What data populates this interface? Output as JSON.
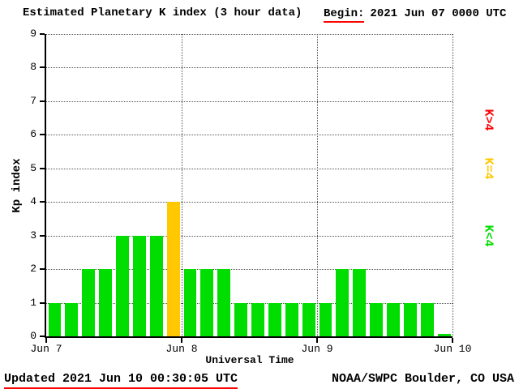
{
  "title": "Estimated Planetary K index (3 hour data)",
  "header": {
    "begin_label": "Begin:",
    "begin_value": "2021 Jun 07 0000 UTC"
  },
  "footer": {
    "updated": "Updated 2021 Jun 10 00:30:05 UTC",
    "source": "NOAA/SWPC Boulder, CO USA"
  },
  "chart_data": {
    "type": "bar",
    "title": "Estimated Planetary K index (3 hour data)",
    "begin": "2021 Jun 07 0000 UTC",
    "xlabel": "Universal Time",
    "ylabel": "Kp index",
    "ylim": [
      0,
      9
    ],
    "yticks": [
      0,
      1,
      2,
      3,
      4,
      5,
      6,
      7,
      8,
      9
    ],
    "x_day_labels": [
      "Jun 7",
      "Jun 8",
      "Jun 9",
      "Jun 10"
    ],
    "bars_per_day": 8,
    "grid": "dotted horizontal at each Kp level, dotted vertical at day boundaries",
    "values": [
      1,
      1,
      2,
      2,
      3,
      3,
      3,
      4,
      2,
      2,
      2,
      1,
      1,
      1,
      1,
      1,
      1,
      2,
      2,
      1,
      1,
      1,
      1,
      0
    ],
    "bar_color_rule": {
      "below_4": "#00dd00",
      "equal_4": "#ffc800",
      "above_4": "#ff0000"
    },
    "legend": [
      {
        "label": "K>4",
        "color": "#ff0000"
      },
      {
        "label": "K=4",
        "color": "#ffc800"
      },
      {
        "label": "K<4",
        "color": "#00dd00"
      }
    ],
    "legend_position": "right, rotated 90deg"
  }
}
